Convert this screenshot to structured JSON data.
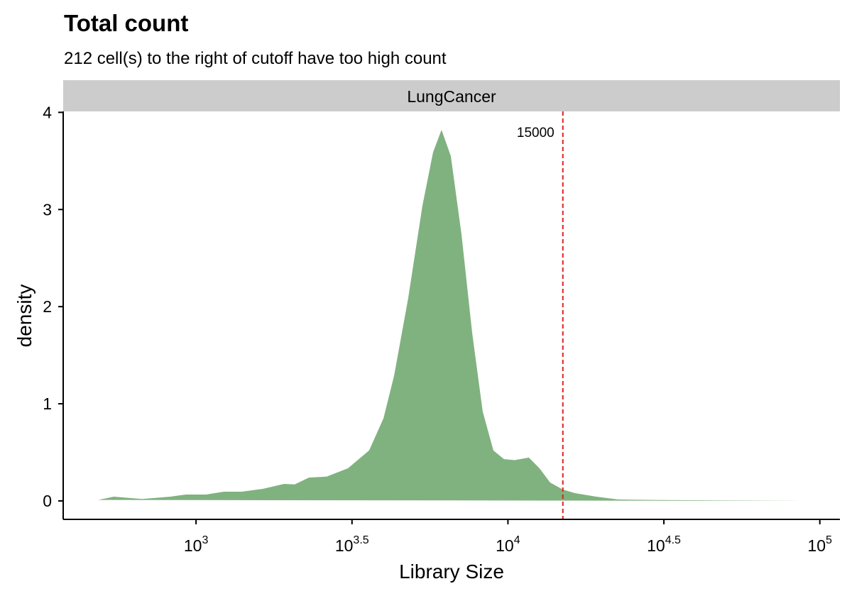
{
  "chart_data": {
    "type": "density",
    "title": "Total count",
    "subtitle": "212 cell(s) to the right of cutoff have too high count",
    "facet": "LungCancer",
    "x_label": "Library Size",
    "y_label": "density",
    "xscale": "log",
    "xlim": [
      375,
      116000
    ],
    "ylim": [
      -0.19,
      4.01
    ],
    "xticks": [
      {
        "value": 1000,
        "label": "10^3"
      },
      {
        "value": 3162.28,
        "label": "10^3.5"
      },
      {
        "value": 10000,
        "label": "10^4"
      },
      {
        "value": 31622.8,
        "label": "10^4.5"
      },
      {
        "value": 100000,
        "label": "10^5"
      }
    ],
    "yticks": [
      0,
      1,
      2,
      3,
      4
    ],
    "color": "#80b27f",
    "cutoff": 15000,
    "cutoff_color": "#e0211d",
    "x": [
      485,
      545,
      671,
      828,
      929,
      1076,
      1227,
      1399,
      1637,
      1914,
      2071,
      2300,
      2622,
      3070,
      3590,
      3990,
      4316,
      4790,
      5320,
      5755,
      6125,
      6560,
      7100,
      7680,
      8300,
      8980,
      9710,
      10510,
      11670,
      12620,
      13650,
      15000,
      16400,
      19190,
      22480,
      29200,
      44400,
      90000
    ],
    "y": [
      0.01,
      0.044,
      0.02,
      0.044,
      0.066,
      0.066,
      0.095,
      0.095,
      0.124,
      0.175,
      0.17,
      0.24,
      0.25,
      0.336,
      0.52,
      0.85,
      1.29,
      2.09,
      3.04,
      3.59,
      3.82,
      3.55,
      2.74,
      1.73,
      0.92,
      0.52,
      0.43,
      0.42,
      0.446,
      0.336,
      0.19,
      0.117,
      0.08,
      0.044,
      0.015,
      0.01,
      0.005,
      0
    ]
  }
}
